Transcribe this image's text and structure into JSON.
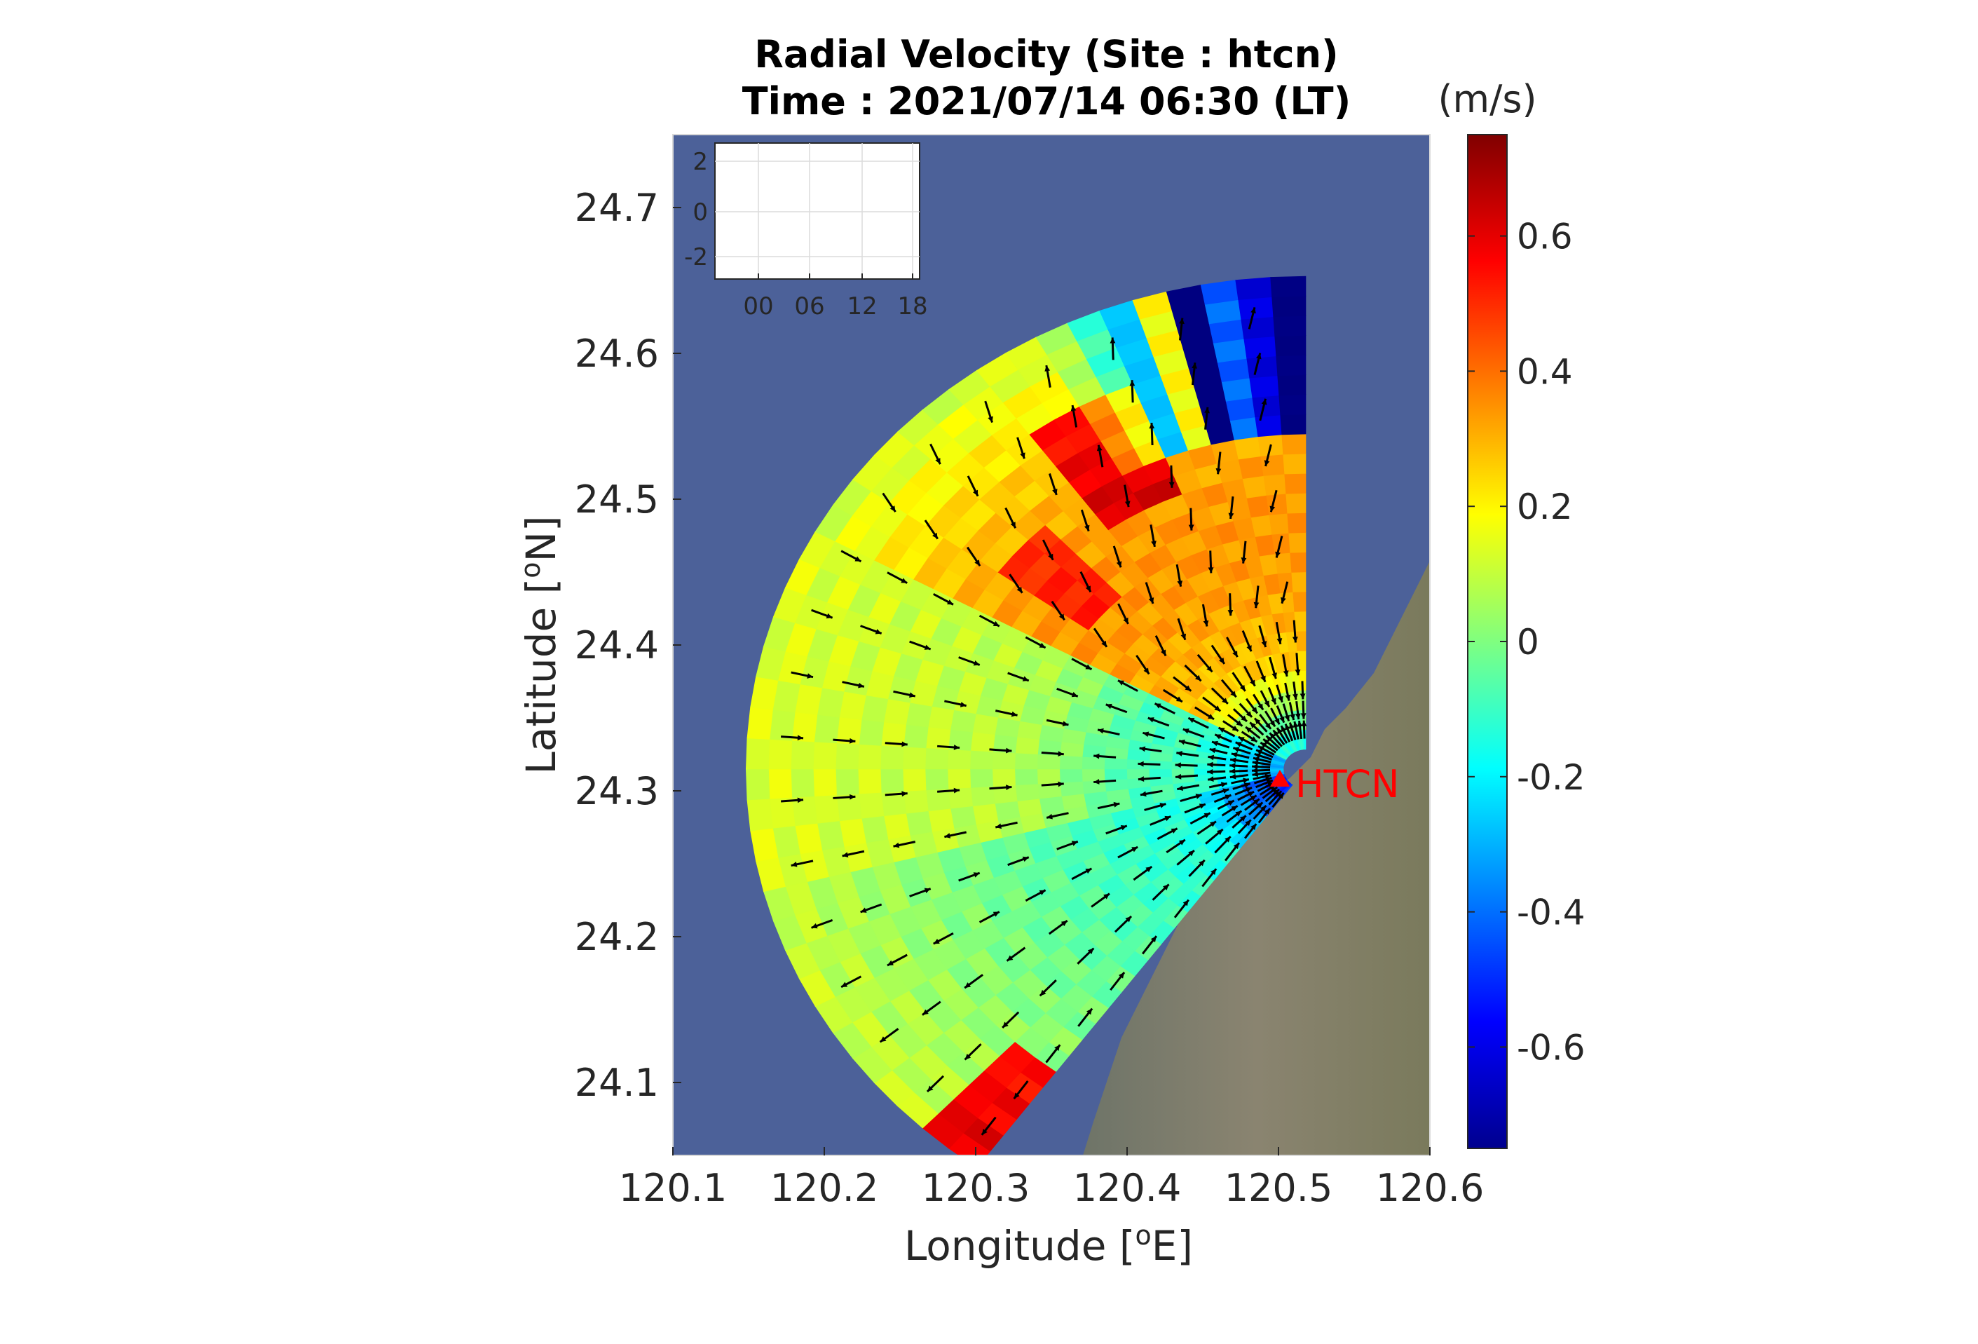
{
  "chart_data": {
    "type": "heatmap",
    "title_line1": "Radial Velocity (Site : htcn)",
    "title_line2": "Time : 2021/07/14 06:30 (LT)",
    "xlabel": "Longitude [",
    "xlabel_sup": "o",
    "xlabel_end": "E]",
    "ylabel": "Latitude [",
    "ylabel_sup": "o",
    "ylabel_end": "N]",
    "xlim": [
      120.1,
      120.6
    ],
    "ylim": [
      24.05,
      24.75
    ],
    "xticks": [
      "120.1",
      "120.2",
      "120.3",
      "120.4",
      "120.5",
      "120.6"
    ],
    "yticks": [
      "24.1",
      "24.2",
      "24.3",
      "24.4",
      "24.5",
      "24.6",
      "24.7"
    ],
    "site": {
      "name": "HTCN",
      "lon": 120.518,
      "lat": 24.315
    },
    "sector": {
      "bearing_min": 216,
      "bearing_max": 360,
      "range_max_km": 37
    },
    "colorbar": {
      "unit": "(m/s)",
      "range": [
        -0.75,
        0.75
      ],
      "ticks": [
        "0.6",
        "0.4",
        "0.2",
        "0",
        "-0.2",
        "-0.4",
        "-0.6"
      ],
      "tick_values": [
        0.6,
        0.4,
        0.2,
        0,
        -0.2,
        -0.4,
        -0.6
      ],
      "colormap": "jet"
    },
    "inset": {
      "yticks": [
        "2",
        "0",
        "-2"
      ],
      "xticks": [
        "00",
        "06",
        "12",
        "18"
      ]
    },
    "colors": {
      "sea": "#4c6199",
      "land": "#7b7b6a",
      "site_marker": "#ff0000",
      "arrow": "#000000"
    }
  }
}
